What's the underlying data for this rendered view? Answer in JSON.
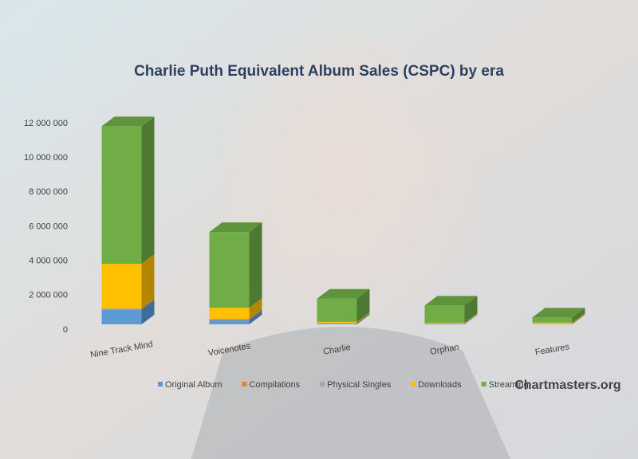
{
  "chart_data": {
    "type": "bar3d_stacked",
    "title": "Charlie  Puth Equivalent Album Sales (CSPC) by era",
    "watermark": "Chartmasters.org",
    "categories": [
      "Nine Track Mind",
      "Voicenotes",
      "Charlie",
      "Orphan",
      "Features"
    ],
    "series": [
      {
        "name": "Original Album",
        "color": "#5b9bd5",
        "values": [
          850000,
          250000,
          50000,
          30000,
          10000
        ]
      },
      {
        "name": "Compilations",
        "color": "#ed7d31",
        "values": [
          50000,
          50000,
          10000,
          10000,
          5000
        ]
      },
      {
        "name": "Physical Singles",
        "color": "#a5a5a5",
        "values": [
          20000,
          20000,
          5000,
          5000,
          5000
        ]
      },
      {
        "name": "Downloads",
        "color": "#ffc000",
        "values": [
          2600000,
          650000,
          80000,
          50000,
          80000
        ]
      },
      {
        "name": "Streaming",
        "color": "#70ad47",
        "values": [
          8000000,
          4400000,
          1350000,
          1000000,
          300000
        ]
      }
    ],
    "ylim": [
      0,
      12000000
    ],
    "yticks": [
      0,
      {
        "value": 2000000,
        "label": "2 000 000"
      },
      {
        "value": 4000000,
        "label": "4 000 000"
      },
      {
        "value": 6000000,
        "label": "6 000 000"
      },
      {
        "value": 8000000,
        "label": "8 000 000"
      },
      {
        "value": 10000000,
        "label": "10 000 000"
      },
      {
        "value": 12000000,
        "label": "12 000 000"
      }
    ],
    "grid": false
  }
}
